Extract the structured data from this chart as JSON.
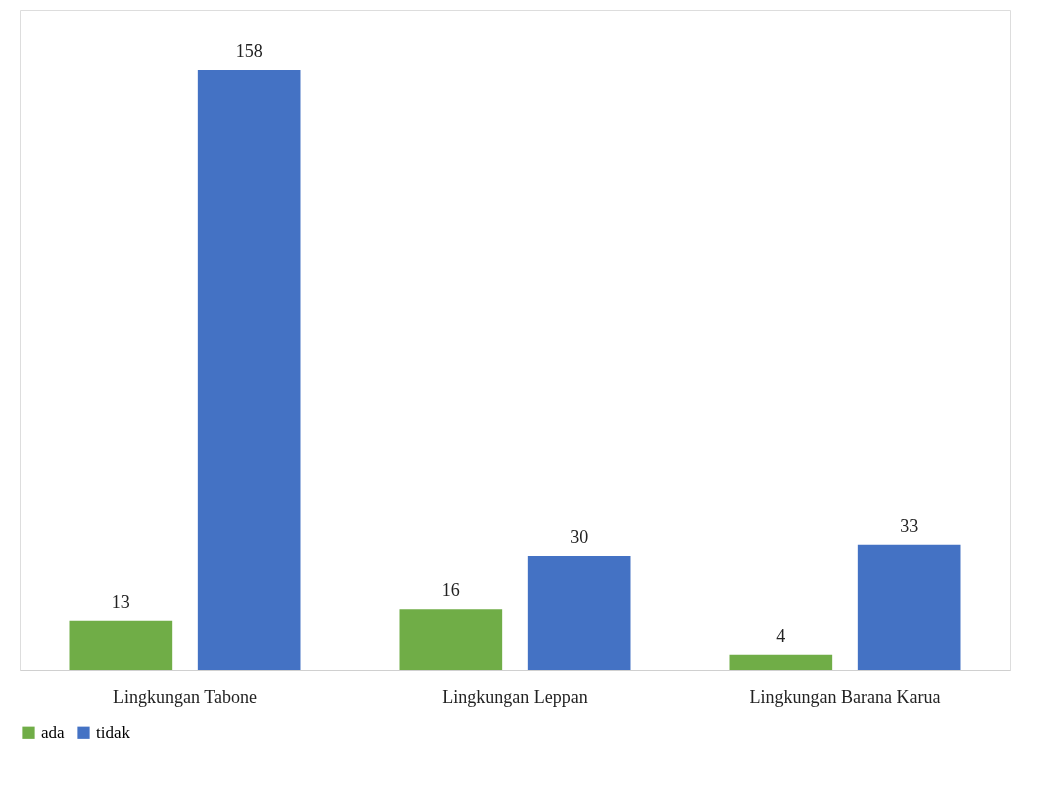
{
  "chart_data": {
    "type": "bar",
    "categories": [
      "Lingkungan Tabone",
      "Lingkungan Leppan",
      "Lingkungan Barana Karua"
    ],
    "series": [
      {
        "name": "ada",
        "color": "#70ad47",
        "values": [
          13,
          16,
          4
        ]
      },
      {
        "name": "tidak",
        "color": "#4472c4",
        "values": [
          158,
          30,
          33
        ]
      }
    ],
    "data_labels": true,
    "legend": "bottom",
    "grid": false
  }
}
